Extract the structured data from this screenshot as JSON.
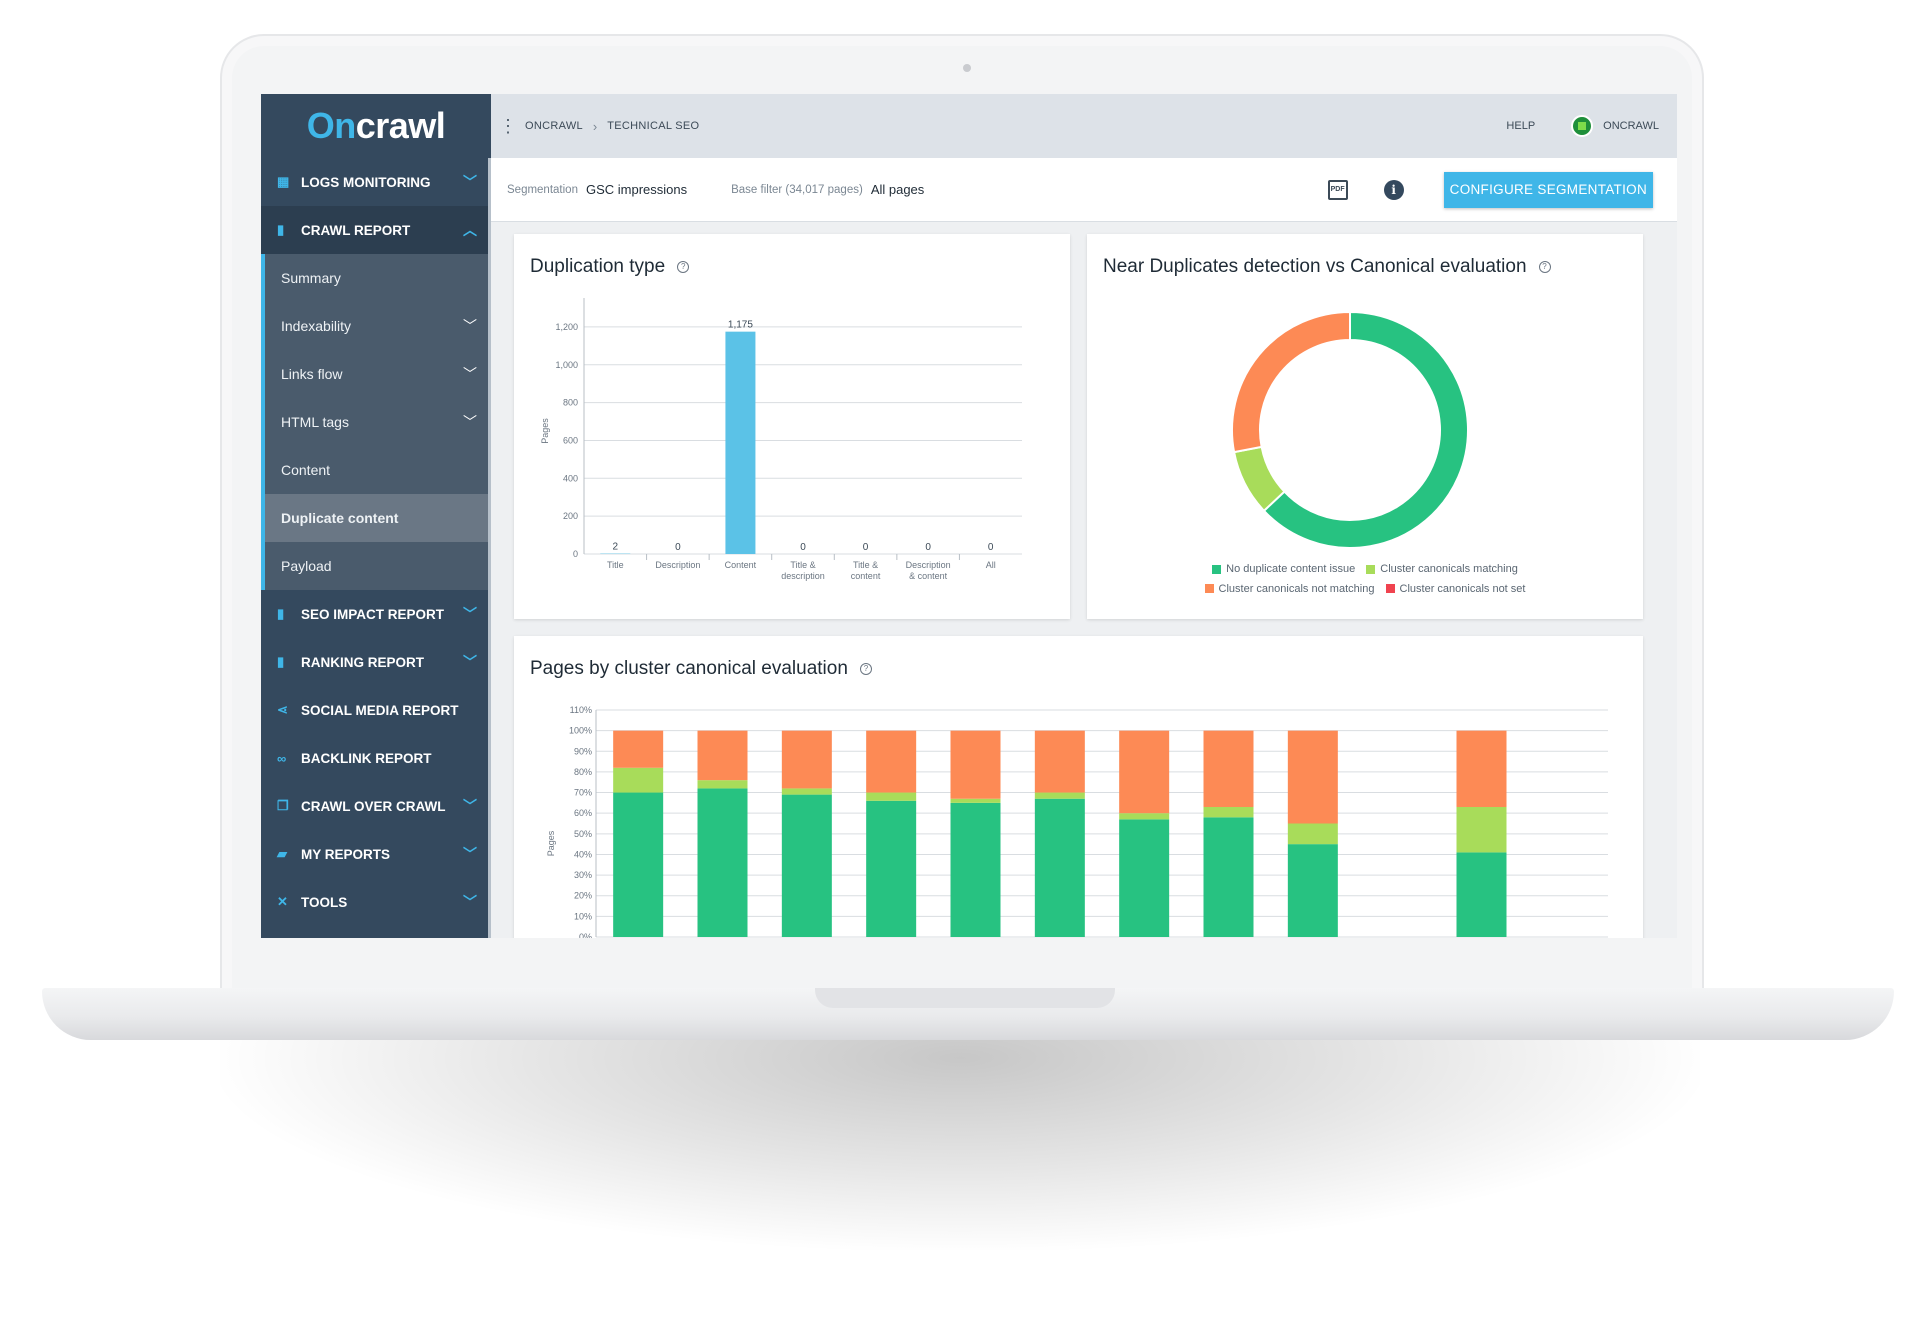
{
  "app": {
    "logo_prefix": "On",
    "logo_rest": "crawl"
  },
  "sidebar": {
    "items": [
      {
        "label": "LOGS MONITORING",
        "icon": "calendar-icon",
        "chevron": "down"
      },
      {
        "label": "CRAWL REPORT",
        "icon": "bar-chart-icon",
        "chevron": "up"
      },
      {
        "label": "SEO IMPACT REPORT",
        "icon": "bar-chart-icon",
        "chevron": "down"
      },
      {
        "label": "RANKING REPORT",
        "icon": "bar-chart-icon",
        "chevron": "down"
      },
      {
        "label": "SOCIAL MEDIA REPORT",
        "icon": "share-icon",
        "chevron": ""
      },
      {
        "label": "BACKLINK REPORT",
        "icon": "link-icon",
        "chevron": ""
      },
      {
        "label": "CRAWL OVER CRAWL",
        "icon": "copy-icon",
        "chevron": "down"
      },
      {
        "label": "MY REPORTS",
        "icon": "folder-icon",
        "chevron": "down"
      },
      {
        "label": "TOOLS",
        "icon": "tools-icon",
        "chevron": "down"
      }
    ],
    "crawl_report_sub": [
      {
        "label": "Summary",
        "chevron": false
      },
      {
        "label": "Indexability",
        "chevron": true
      },
      {
        "label": "Links flow",
        "chevron": true
      },
      {
        "label": "HTML tags",
        "chevron": true
      },
      {
        "label": "Content",
        "chevron": false
      },
      {
        "label": "Duplicate content",
        "chevron": false,
        "active": true
      },
      {
        "label": "Payload",
        "chevron": false
      }
    ]
  },
  "topbar": {
    "breadcrumb": [
      "ONCRAWL",
      "TECHNICAL SEO"
    ],
    "help": "HELP",
    "user": "ONCRAWL"
  },
  "filterbar": {
    "segmentation_label": "Segmentation",
    "segmentation_value": "GSC impressions",
    "base_filter_label": "Base filter (34,017 pages)",
    "base_filter_value": "All pages",
    "pdf_label": "PDF",
    "configure_button": "CONFIGURE SEGMENTATION"
  },
  "colors": {
    "accent": "#3fb6e8",
    "sidebar": "#34495e",
    "green": "#27c281",
    "light_green": "#a8dc5a",
    "orange": "#fd8a55",
    "red": "#f0434f"
  },
  "chart_data": [
    {
      "type": "bar",
      "title": "Duplication type",
      "ylabel": "Pages",
      "categories": [
        "Title",
        "Description",
        "Content",
        "Title & description",
        "Title & content",
        "Description & content",
        "All"
      ],
      "category_lines": [
        [
          "Title"
        ],
        [
          "Description"
        ],
        [
          "Content"
        ],
        [
          "Title &",
          "description"
        ],
        [
          "Title &",
          "content"
        ],
        [
          "Description",
          "& content"
        ],
        [
          "All"
        ]
      ],
      "values": [
        2,
        0,
        1175,
        0,
        0,
        0,
        0
      ],
      "value_labels": [
        "2",
        "0",
        "1,175",
        "0",
        "0",
        "0",
        "0"
      ],
      "ylim": [
        0,
        1300
      ],
      "yticks": [
        0,
        200,
        400,
        600,
        800,
        1000,
        1200
      ],
      "ytick_labels": [
        "0",
        "200",
        "400",
        "600",
        "800",
        "1,000",
        "1,200"
      ],
      "grid": true
    },
    {
      "type": "pie",
      "title": "Near Duplicates detection vs Canonical evaluation",
      "donut": true,
      "slices": [
        {
          "name": "No duplicate content issue",
          "value": 0.63,
          "color": "#27c281"
        },
        {
          "name": "Cluster canonicals matching",
          "value": 0.09,
          "color": "#a8dc5a"
        },
        {
          "name": "Cluster canonicals not matching",
          "value": 0.28,
          "color": "#fd8a55"
        },
        {
          "name": "Cluster canonicals not set",
          "value": 0.0,
          "color": "#f0434f"
        }
      ],
      "legend": "bottom"
    },
    {
      "type": "bar",
      "stacked": true,
      "title": "Pages by cluster canonical evaluation",
      "ylabel": "Pages",
      "ylim": [
        0,
        110
      ],
      "yticks": [
        0,
        10,
        20,
        30,
        40,
        50,
        60,
        70,
        80,
        90,
        100,
        110
      ],
      "ytick_labels": [
        "0%",
        "10%",
        "20%",
        "30%",
        "40%",
        "50%",
        "60%",
        "70%",
        "80%",
        "90%",
        "100%",
        "110%"
      ],
      "slots": 12,
      "series": [
        {
          "color": "#27c281",
          "values": [
            70,
            72,
            69,
            66,
            65,
            67,
            57,
            58,
            45,
            null,
            41,
            null
          ]
        },
        {
          "color": "#a8dc5a",
          "values": [
            12,
            4,
            3,
            4,
            2,
            3,
            3,
            5,
            10,
            null,
            22,
            null
          ]
        },
        {
          "color": "#fd8a55",
          "values": [
            18,
            24,
            28,
            30,
            33,
            30,
            40,
            37,
            45,
            null,
            37,
            null
          ]
        }
      ],
      "grid": true
    }
  ]
}
